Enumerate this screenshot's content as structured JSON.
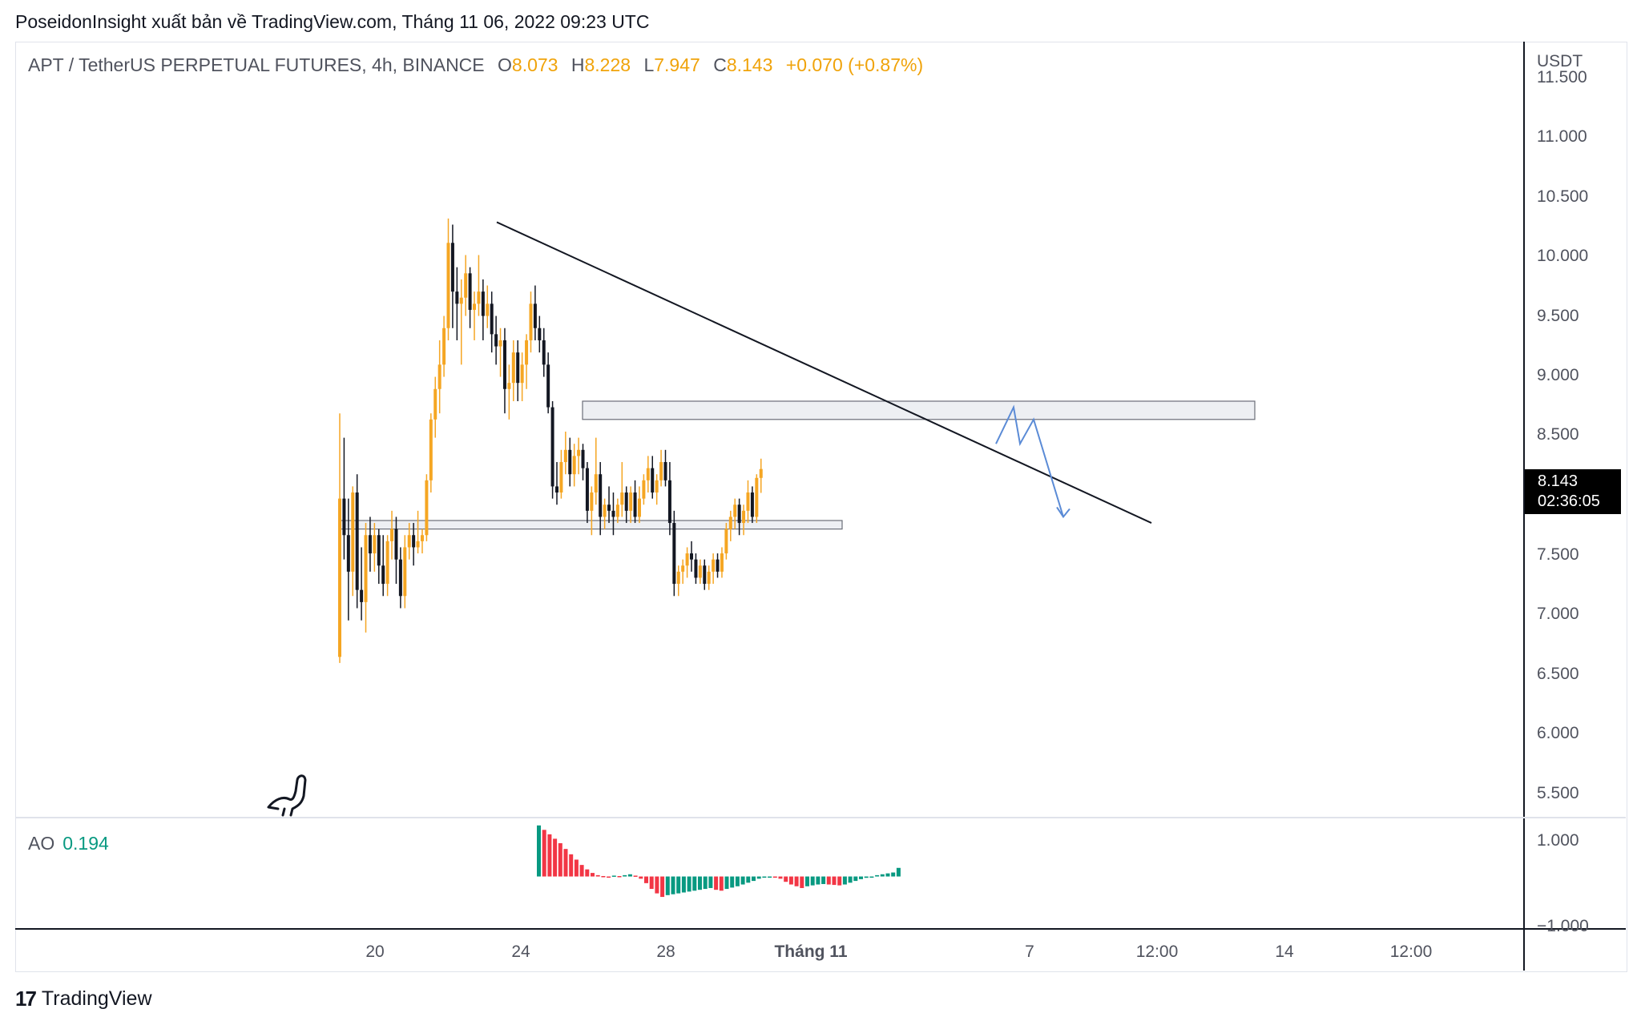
{
  "publisher_line": "PoseidonInsight xuất bản về TradingView.com, Tháng 11 06, 2022 09:23 UTC",
  "legend": {
    "symbol": "APT / TetherUS PERPETUAL FUTURES, 4h, BINANCE",
    "o_label": "O",
    "o_value": "8.073",
    "h_label": "H",
    "h_value": "8.228",
    "l_label": "L",
    "l_value": "7.947",
    "c_label": "C",
    "c_value": "8.143",
    "change": "+0.070 (+0.87%)"
  },
  "price_axis": {
    "currency": "USDT",
    "ticks": [
      "11.500",
      "11.000",
      "10.500",
      "10.000",
      "9.500",
      "9.000",
      "8.500",
      "7.500",
      "7.000",
      "6.500",
      "6.000",
      "5.500"
    ]
  },
  "last_price": {
    "value": "8.143",
    "countdown": "02:36:05"
  },
  "time_axis": {
    "labels": [
      "20",
      "24",
      "28",
      "Tháng 11",
      "7",
      "12:00",
      "14",
      "12:00"
    ]
  },
  "ao": {
    "label": "AO",
    "value": "0.194",
    "ticks": [
      "1.000",
      "−1.000"
    ]
  },
  "brand": {
    "logo": "17",
    "name": "TradingView"
  },
  "colors": {
    "up": "#f5a623",
    "down": "#131722",
    "ao_up": "#089981",
    "ao_down": "#f23645",
    "arrow": "#5b8bd6"
  },
  "chart_data": {
    "type": "candlestick",
    "symbol": "APTUSDT.P",
    "timeframe": "4h",
    "ylim": [
      5.3,
      11.6
    ],
    "candles": [
      [
        6.6,
        8.6,
        6.55,
        7.9
      ],
      [
        7.9,
        8.4,
        7.4,
        7.6
      ],
      [
        7.6,
        7.9,
        6.9,
        7.3
      ],
      [
        7.3,
        8.0,
        7.1,
        7.95
      ],
      [
        7.95,
        8.1,
        7.0,
        7.15
      ],
      [
        7.15,
        7.5,
        6.9,
        7.05
      ],
      [
        7.05,
        7.7,
        6.8,
        7.6
      ],
      [
        7.6,
        7.75,
        7.3,
        7.45
      ],
      [
        7.45,
        7.7,
        7.3,
        7.6
      ],
      [
        7.6,
        7.65,
        7.2,
        7.35
      ],
      [
        7.35,
        7.6,
        7.1,
        7.2
      ],
      [
        7.2,
        7.6,
        7.1,
        7.55
      ],
      [
        7.55,
        7.8,
        7.4,
        7.65
      ],
      [
        7.65,
        7.75,
        7.2,
        7.4
      ],
      [
        7.4,
        7.5,
        7.0,
        7.1
      ],
      [
        7.1,
        7.6,
        7.0,
        7.5
      ],
      [
        7.5,
        7.7,
        7.4,
        7.6
      ],
      [
        7.6,
        7.7,
        7.35,
        7.5
      ],
      [
        7.5,
        7.8,
        7.45,
        7.55
      ],
      [
        7.55,
        7.65,
        7.45,
        7.6
      ],
      [
        7.6,
        8.1,
        7.55,
        8.05
      ],
      [
        8.05,
        8.6,
        7.95,
        8.55
      ],
      [
        8.55,
        8.9,
        8.4,
        8.8
      ],
      [
        8.8,
        9.2,
        8.6,
        9.0
      ],
      [
        9.0,
        9.4,
        8.9,
        9.3
      ],
      [
        9.3,
        10.2,
        9.2,
        10.0
      ],
      [
        10.0,
        10.15,
        9.3,
        9.6
      ],
      [
        9.6,
        9.8,
        9.2,
        9.5
      ],
      [
        9.5,
        9.7,
        9.0,
        9.55
      ],
      [
        9.55,
        9.9,
        9.4,
        9.75
      ],
      [
        9.75,
        9.8,
        9.3,
        9.45
      ],
      [
        9.45,
        9.6,
        9.2,
        9.5
      ],
      [
        9.5,
        9.9,
        9.4,
        9.6
      ],
      [
        9.6,
        9.7,
        9.2,
        9.4
      ],
      [
        9.4,
        9.65,
        9.3,
        9.5
      ],
      [
        9.5,
        9.6,
        9.1,
        9.25
      ],
      [
        9.25,
        9.4,
        9.0,
        9.15
      ],
      [
        9.15,
        9.3,
        8.9,
        9.2
      ],
      [
        9.2,
        9.3,
        8.6,
        8.8
      ],
      [
        8.8,
        9.0,
        8.55,
        8.85
      ],
      [
        8.85,
        9.2,
        8.7,
        9.1
      ],
      [
        9.1,
        9.2,
        8.7,
        8.85
      ],
      [
        8.85,
        9.1,
        8.7,
        9.0
      ],
      [
        9.0,
        9.25,
        8.8,
        9.2
      ],
      [
        9.2,
        9.6,
        9.1,
        9.5
      ],
      [
        9.5,
        9.65,
        9.2,
        9.3
      ],
      [
        9.3,
        9.4,
        9.1,
        9.2
      ],
      [
        9.2,
        9.3,
        8.9,
        9.0
      ],
      [
        9.0,
        9.1,
        8.6,
        8.65
      ],
      [
        8.65,
        8.7,
        7.9,
        8.0
      ],
      [
        8.0,
        8.2,
        7.85,
        7.95
      ],
      [
        7.95,
        8.3,
        7.9,
        8.2
      ],
      [
        8.2,
        8.45,
        8.1,
        8.3
      ],
      [
        8.3,
        8.4,
        8.0,
        8.1
      ],
      [
        8.1,
        8.35,
        8.0,
        8.25
      ],
      [
        8.25,
        8.4,
        8.1,
        8.3
      ],
      [
        8.3,
        8.35,
        8.05,
        8.15
      ],
      [
        8.15,
        8.2,
        7.7,
        7.8
      ],
      [
        7.8,
        8.0,
        7.6,
        7.95
      ],
      [
        7.95,
        8.4,
        7.85,
        8.1
      ],
      [
        8.1,
        8.2,
        7.6,
        7.75
      ],
      [
        7.75,
        7.9,
        7.65,
        7.85
      ],
      [
        7.85,
        8.0,
        7.7,
        7.8
      ],
      [
        7.8,
        7.95,
        7.6,
        7.75
      ],
      [
        7.75,
        7.9,
        7.7,
        7.85
      ],
      [
        7.85,
        8.2,
        7.75,
        7.95
      ],
      [
        7.95,
        8.0,
        7.7,
        7.8
      ],
      [
        7.8,
        8.0,
        7.7,
        7.95
      ],
      [
        7.95,
        8.05,
        7.7,
        7.75
      ],
      [
        7.75,
        8.0,
        7.7,
        7.9
      ],
      [
        7.9,
        8.1,
        7.85,
        8.05
      ],
      [
        8.05,
        8.25,
        7.95,
        8.15
      ],
      [
        8.15,
        8.25,
        7.9,
        7.95
      ],
      [
        7.95,
        8.1,
        7.85,
        8.05
      ],
      [
        8.05,
        8.3,
        8.0,
        8.2
      ],
      [
        8.2,
        8.3,
        8.0,
        8.05
      ],
      [
        8.05,
        8.2,
        7.6,
        7.7
      ],
      [
        7.7,
        7.8,
        7.1,
        7.2
      ],
      [
        7.2,
        7.35,
        7.1,
        7.3
      ],
      [
        7.3,
        7.4,
        7.2,
        7.35
      ],
      [
        7.35,
        7.5,
        7.25,
        7.45
      ],
      [
        7.45,
        7.55,
        7.3,
        7.4
      ],
      [
        7.4,
        7.45,
        7.2,
        7.25
      ],
      [
        7.25,
        7.4,
        7.2,
        7.35
      ],
      [
        7.35,
        7.4,
        7.15,
        7.2
      ],
      [
        7.2,
        7.35,
        7.15,
        7.3
      ],
      [
        7.3,
        7.45,
        7.2,
        7.4
      ],
      [
        7.4,
        7.45,
        7.25,
        7.3
      ],
      [
        7.3,
        7.5,
        7.25,
        7.45
      ],
      [
        7.45,
        7.7,
        7.4,
        7.65
      ],
      [
        7.65,
        7.8,
        7.55,
        7.75
      ],
      [
        7.75,
        7.9,
        7.65,
        7.85
      ],
      [
        7.85,
        7.9,
        7.6,
        7.7
      ],
      [
        7.7,
        7.85,
        7.6,
        7.8
      ],
      [
        7.8,
        8.05,
        7.7,
        7.95
      ],
      [
        7.95,
        8.0,
        7.7,
        7.75
      ],
      [
        7.75,
        8.1,
        7.7,
        8.07
      ],
      [
        8.07,
        8.228,
        7.947,
        8.143
      ]
    ],
    "zones": [
      {
        "from": 8.55,
        "to": 8.7
      },
      {
        "from": 7.65,
        "to": 7.72
      }
    ],
    "trendline": {
      "from": 10.17,
      "to": 7.7
    },
    "projection": [
      8.35,
      8.65,
      8.35,
      8.55,
      7.75
    ],
    "ao_values": [
      1.15,
      1.05,
      0.95,
      0.85,
      0.75,
      0.62,
      0.5,
      0.38,
      0.26,
      0.16,
      0.08,
      0.03,
      0.01,
      0.0,
      0.02,
      0.01,
      0.03,
      0.05,
      0.02,
      -0.05,
      -0.15,
      -0.28,
      -0.38,
      -0.46,
      -0.42,
      -0.4,
      -0.38,
      -0.36,
      -0.34,
      -0.32,
      -0.3,
      -0.28,
      -0.26,
      -0.3,
      -0.32,
      -0.28,
      -0.25,
      -0.22,
      -0.18,
      -0.14,
      -0.1,
      -0.05,
      -0.02,
      0.0,
      -0.02,
      -0.05,
      -0.12,
      -0.18,
      -0.22,
      -0.26,
      -0.22,
      -0.2,
      -0.18,
      -0.17,
      -0.18,
      -0.19,
      -0.2,
      -0.18,
      -0.14,
      -0.1,
      -0.06,
      -0.03,
      0.0,
      0.03,
      0.05,
      0.07,
      0.09,
      0.194
    ],
    "ao_ylim": [
      -1.0,
      1.2
    ]
  }
}
